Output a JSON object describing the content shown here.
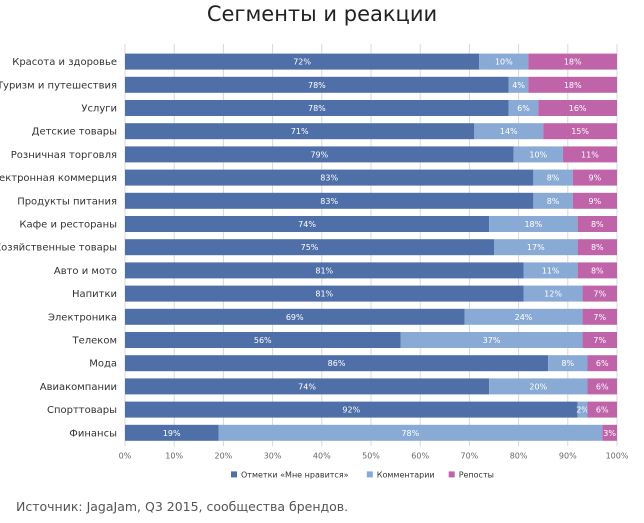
{
  "colors": {
    "likes": "#4f6fa8",
    "comments": "#8aaad6",
    "reposts": "#c064aa",
    "grid": "#d9d9d9"
  },
  "chart_data": {
    "type": "bar",
    "orientation": "horizontal-stacked-100",
    "title": "Сегменты и реакции",
    "categories": [
      "Красота и здоровье",
      "Туризм и путешествия",
      "Услуги",
      "Детские товары",
      "Розничная торговля",
      "Электронная коммерция",
      "Продукты питания",
      "Кафе и рестораны",
      "Хозяйственные товары",
      "Авто и мото",
      "Напитки",
      "Электроника",
      "Телеком",
      "Мода",
      "Авиакомпании",
      "Спорттовары",
      "Финансы"
    ],
    "series": [
      {
        "name": "Отметки «Мне нравится»",
        "values": [
          72,
          78,
          78,
          71,
          79,
          83,
          83,
          74,
          75,
          81,
          81,
          69,
          56,
          86,
          74,
          92,
          19
        ]
      },
      {
        "name": "Комментарии",
        "values": [
          10,
          4,
          6,
          14,
          10,
          8,
          8,
          18,
          17,
          11,
          12,
          24,
          37,
          8,
          20,
          2,
          78
        ]
      },
      {
        "name": "Репосты",
        "values": [
          18,
          18,
          16,
          15,
          11,
          9,
          9,
          8,
          8,
          8,
          7,
          7,
          7,
          6,
          6,
          6,
          3
        ]
      }
    ],
    "xlim": [
      0,
      100
    ],
    "x_ticks": [
      "0%",
      "10%",
      "20%",
      "30%",
      "40%",
      "50%",
      "60%",
      "70%",
      "80%",
      "90%",
      "100%"
    ],
    "value_suffix": "%",
    "grid": true,
    "legend_position": "bottom"
  },
  "source_note": "Источник: JagaJam, Q3 2015, сообщества брендов."
}
